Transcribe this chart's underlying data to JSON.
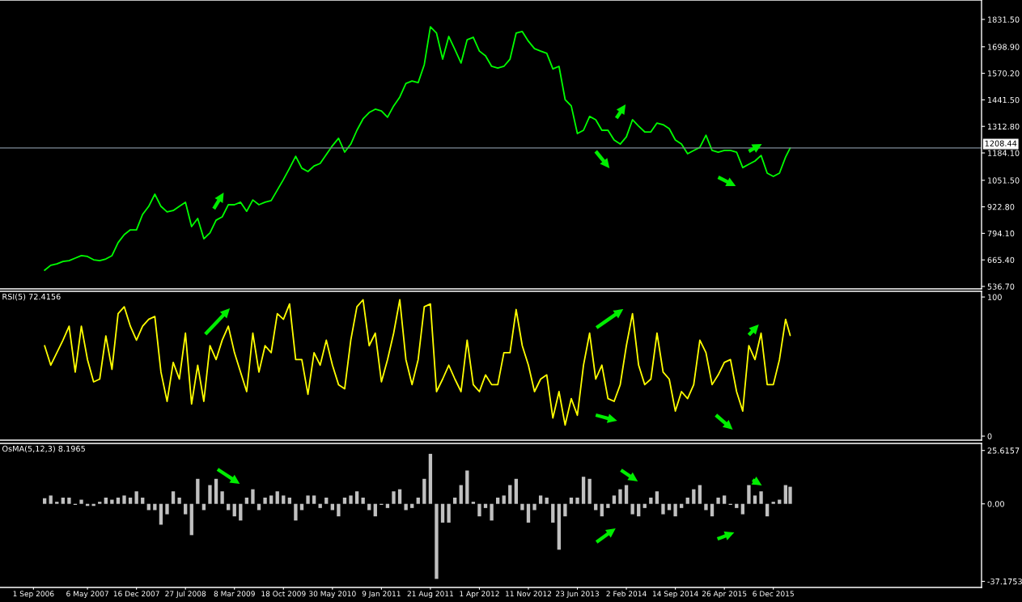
{
  "chart_data": [
    {
      "type": "line",
      "tick_labels": "y",
      "x": [
        "2006-10-22",
        "2006-11-19",
        "2006-12-17",
        "2007-01-14",
        "2007-02-11",
        "2007-03-11",
        "2007-04-08",
        "2007-05-06",
        "2007-06-03",
        "2007-07-01",
        "2007-07-29",
        "2007-08-26",
        "2007-09-23",
        "2007-10-21",
        "2007-11-18",
        "2007-12-16",
        "2008-01-13",
        "2008-02-10",
        "2008-03-09",
        "2008-04-06",
        "2008-05-04",
        "2008-06-01",
        "2008-06-29",
        "2008-07-27",
        "2008-08-24",
        "2008-09-21",
        "2008-10-19",
        "2008-11-16",
        "2008-12-14",
        "2009-01-11",
        "2009-02-08",
        "2009-03-08",
        "2009-04-05",
        "2009-05-03",
        "2009-05-31",
        "2009-06-28",
        "2009-07-26",
        "2009-08-23",
        "2009-09-20",
        "2009-10-18",
        "2009-11-15",
        "2009-12-13",
        "2010-01-10",
        "2010-02-07",
        "2010-03-07",
        "2010-04-04",
        "2010-05-02",
        "2010-05-30",
        "2010-06-27",
        "2010-07-25",
        "2010-08-22",
        "2010-09-19",
        "2010-10-17",
        "2010-11-14",
        "2010-12-12",
        "2011-01-09",
        "2011-02-06",
        "2011-03-06",
        "2011-04-03",
        "2011-05-01",
        "2011-05-29",
        "2011-06-26",
        "2011-07-24",
        "2011-08-21",
        "2011-09-18",
        "2011-10-16",
        "2011-11-13",
        "2011-12-11",
        "2012-01-08",
        "2012-02-05",
        "2012-03-04",
        "2012-04-01",
        "2012-04-29",
        "2012-05-27",
        "2012-06-24",
        "2012-07-22",
        "2012-08-19",
        "2012-09-16",
        "2012-10-14",
        "2012-11-11",
        "2012-12-09",
        "2013-01-06",
        "2013-02-03",
        "2013-03-03",
        "2013-03-31",
        "2013-04-28",
        "2013-05-26",
        "2013-06-23",
        "2013-07-21",
        "2013-08-18",
        "2013-09-15",
        "2013-10-13",
        "2013-11-10",
        "2013-12-08",
        "2014-01-05",
        "2014-02-02",
        "2014-03-02",
        "2014-03-30",
        "2014-04-27",
        "2014-05-25",
        "2014-06-22",
        "2014-07-20",
        "2014-08-17",
        "2014-09-14",
        "2014-10-12",
        "2014-11-09",
        "2014-12-07",
        "2015-01-04",
        "2015-02-01",
        "2015-03-01",
        "2015-03-29",
        "2015-04-26",
        "2015-05-24",
        "2015-06-21",
        "2015-07-19",
        "2015-08-16",
        "2015-09-13",
        "2015-10-11",
        "2015-11-08",
        "2015-12-06",
        "2016-01-03",
        "2016-01-31",
        "2016-02-21"
      ],
      "series": [
        {
          "color": "#00ff00",
          "values": [
            615,
            639,
            646,
            658,
            662,
            674,
            686,
            682,
            666,
            662,
            670,
            686,
            749,
            788,
            811,
            811,
            886,
            925,
            984,
            925,
            898,
            905,
            925,
            945,
            827,
            866,
            768,
            796,
            858,
            874,
            933,
            933,
            945,
            901,
            956,
            933,
            945,
            953,
            1004,
            1055,
            1110,
            1168,
            1110,
            1094,
            1121,
            1133,
            1176,
            1219,
            1255,
            1188,
            1227,
            1294,
            1349,
            1380,
            1396,
            1388,
            1357,
            1412,
            1455,
            1521,
            1533,
            1525,
            1612,
            1796,
            1765,
            1639,
            1749,
            1686,
            1620,
            1733,
            1745,
            1678,
            1655,
            1604,
            1596,
            1604,
            1639,
            1765,
            1773,
            1726,
            1690,
            1678,
            1667,
            1592,
            1604,
            1443,
            1412,
            1278,
            1294,
            1361,
            1345,
            1294,
            1294,
            1247,
            1227,
            1262,
            1345,
            1314,
            1286,
            1286,
            1329,
            1321,
            1302,
            1247,
            1227,
            1180,
            1196,
            1211,
            1270,
            1196,
            1188,
            1196,
            1196,
            1188,
            1113,
            1129,
            1145,
            1172,
            1086,
            1070,
            1086,
            1164,
            1208
          ]
        }
      ],
      "xlim": [
        "2006-04-01",
        "2018-07-15"
      ],
      "ylim": [
        524.9,
        1925.7
      ],
      "yticks": [
        {
          "value": 1831.5,
          "label": "1831.50"
        },
        {
          "value": 1698.9,
          "label": "1698.90"
        },
        {
          "value": 1570.2,
          "label": "1570.20"
        },
        {
          "value": 1441.5,
          "label": "1441.50"
        },
        {
          "value": 1312.8,
          "label": "1312.80"
        },
        {
          "value": 1184.1,
          "label": "1184.10"
        },
        {
          "value": 1051.5,
          "label": "1051.50"
        },
        {
          "value": 922.8,
          "label": "922.80"
        },
        {
          "value": 794.1,
          "label": "794.10"
        },
        {
          "value": 665.4,
          "label": "665.40"
        },
        {
          "value": 536.7,
          "label": "536.70"
        }
      ],
      "ref_lines": [
        {
          "axis": "y",
          "value": 1208.44,
          "label": "1208.44",
          "color": "#7f8c99"
        }
      ]
    },
    {
      "type": "line",
      "title": "RSI(5) 72.4156",
      "tick_labels": "y",
      "x": [
        "2006-10-22",
        "2006-11-19",
        "2006-12-17",
        "2007-01-14",
        "2007-02-11",
        "2007-03-11",
        "2007-04-08",
        "2007-05-06",
        "2007-06-03",
        "2007-07-01",
        "2007-07-29",
        "2007-08-26",
        "2007-09-23",
        "2007-10-21",
        "2007-11-18",
        "2007-12-16",
        "2008-01-13",
        "2008-02-10",
        "2008-03-09",
        "2008-04-06",
        "2008-05-04",
        "2008-06-01",
        "2008-06-29",
        "2008-07-27",
        "2008-08-24",
        "2008-09-21",
        "2008-10-19",
        "2008-11-16",
        "2008-12-14",
        "2009-01-11",
        "2009-02-08",
        "2009-03-08",
        "2009-04-05",
        "2009-05-03",
        "2009-05-31",
        "2009-06-28",
        "2009-07-26",
        "2009-08-23",
        "2009-09-20",
        "2009-10-18",
        "2009-11-15",
        "2009-12-13",
        "2010-01-10",
        "2010-02-07",
        "2010-03-07",
        "2010-04-04",
        "2010-05-02",
        "2010-05-30",
        "2010-06-27",
        "2010-07-25",
        "2010-08-22",
        "2010-09-19",
        "2010-10-17",
        "2010-11-14",
        "2010-12-12",
        "2011-01-09",
        "2011-02-06",
        "2011-03-06",
        "2011-04-03",
        "2011-05-01",
        "2011-05-29",
        "2011-06-26",
        "2011-07-24",
        "2011-08-21",
        "2011-09-18",
        "2011-10-16",
        "2011-11-13",
        "2011-12-11",
        "2012-01-08",
        "2012-02-05",
        "2012-03-04",
        "2012-04-01",
        "2012-04-29",
        "2012-05-27",
        "2012-06-24",
        "2012-07-22",
        "2012-08-19",
        "2012-09-16",
        "2012-10-14",
        "2012-11-11",
        "2012-12-09",
        "2013-01-06",
        "2013-02-03",
        "2013-03-03",
        "2013-03-31",
        "2013-04-28",
        "2013-05-26",
        "2013-06-23",
        "2013-07-21",
        "2013-08-18",
        "2013-09-15",
        "2013-10-13",
        "2013-11-10",
        "2013-12-08",
        "2014-01-05",
        "2014-02-02",
        "2014-03-02",
        "2014-03-30",
        "2014-04-27",
        "2014-05-25",
        "2014-06-22",
        "2014-07-20",
        "2014-08-17",
        "2014-09-14",
        "2014-10-12",
        "2014-11-09",
        "2014-12-07",
        "2015-01-04",
        "2015-02-01",
        "2015-03-01",
        "2015-03-29",
        "2015-04-26",
        "2015-05-24",
        "2015-06-21",
        "2015-07-19",
        "2015-08-16",
        "2015-09-13",
        "2015-10-11",
        "2015-11-08",
        "2015-12-06",
        "2016-01-03",
        "2016-01-31",
        "2016-02-21"
      ],
      "series": [
        {
          "color": "#ffff00",
          "values": [
            65,
            51,
            60,
            69,
            79,
            46,
            79,
            55,
            39,
            41,
            72,
            48,
            88,
            93,
            79,
            69,
            79,
            84,
            86,
            46,
            25,
            53,
            41,
            74,
            23,
            51,
            25,
            65,
            55,
            69,
            79,
            60,
            46,
            32,
            74,
            46,
            65,
            60,
            88,
            84,
            95,
            55,
            55,
            30,
            60,
            51,
            69,
            51,
            37,
            34,
            69,
            93,
            98,
            65,
            74,
            39,
            55,
            74,
            98,
            55,
            37,
            55,
            93,
            95,
            32,
            41,
            51,
            41,
            32,
            69,
            37,
            32,
            44,
            37,
            37,
            60,
            60,
            91,
            65,
            51,
            32,
            41,
            44,
            13,
            32,
            8,
            27,
            15,
            51,
            74,
            41,
            51,
            27,
            25,
            37,
            65,
            88,
            51,
            37,
            41,
            74,
            46,
            41,
            18,
            32,
            27,
            37,
            69,
            60,
            37,
            44,
            53,
            55,
            32,
            18,
            65,
            55,
            74,
            37,
            37,
            55,
            84,
            72.4
          ]
        }
      ],
      "xlim": [
        "2006-04-01",
        "2018-07-15"
      ],
      "ylim": [
        -2.9,
        104.1
      ],
      "yticks": [
        100,
        0
      ]
    },
    {
      "type": "bar",
      "title": "OsMA(5,12,3) 8.1965",
      "color": "#c0c0c0",
      "x": [
        "2006-10-22",
        "2006-11-19",
        "2006-12-17",
        "2007-01-14",
        "2007-02-11",
        "2007-03-11",
        "2007-04-08",
        "2007-05-06",
        "2007-06-03",
        "2007-07-01",
        "2007-07-29",
        "2007-08-26",
        "2007-09-23",
        "2007-10-21",
        "2007-11-18",
        "2007-12-16",
        "2008-01-13",
        "2008-02-10",
        "2008-03-09",
        "2008-04-06",
        "2008-05-04",
        "2008-06-01",
        "2008-06-29",
        "2008-07-27",
        "2008-08-24",
        "2008-09-21",
        "2008-10-19",
        "2008-11-16",
        "2008-12-14",
        "2009-01-11",
        "2009-02-08",
        "2009-03-08",
        "2009-04-05",
        "2009-05-03",
        "2009-05-31",
        "2009-06-28",
        "2009-07-26",
        "2009-08-23",
        "2009-09-20",
        "2009-10-18",
        "2009-11-15",
        "2009-12-13",
        "2010-01-10",
        "2010-02-07",
        "2010-03-07",
        "2010-04-04",
        "2010-05-02",
        "2010-05-30",
        "2010-06-27",
        "2010-07-25",
        "2010-08-22",
        "2010-09-19",
        "2010-10-17",
        "2010-11-14",
        "2010-12-12",
        "2011-01-09",
        "2011-02-06",
        "2011-03-06",
        "2011-04-03",
        "2011-05-01",
        "2011-05-29",
        "2011-06-26",
        "2011-07-24",
        "2011-08-21",
        "2011-09-18",
        "2011-10-16",
        "2011-11-13",
        "2011-12-11",
        "2012-01-08",
        "2012-02-05",
        "2012-03-04",
        "2012-04-01",
        "2012-04-29",
        "2012-05-27",
        "2012-06-24",
        "2012-07-22",
        "2012-08-19",
        "2012-09-16",
        "2012-10-14",
        "2012-11-11",
        "2012-12-09",
        "2013-01-06",
        "2013-02-03",
        "2013-03-03",
        "2013-03-31",
        "2013-04-28",
        "2013-05-26",
        "2013-06-23",
        "2013-07-21",
        "2013-08-18",
        "2013-09-15",
        "2013-10-13",
        "2013-11-10",
        "2013-12-08",
        "2014-01-05",
        "2014-02-02",
        "2014-03-02",
        "2014-03-30",
        "2014-04-27",
        "2014-05-25",
        "2014-06-22",
        "2014-07-20",
        "2014-08-17",
        "2014-09-14",
        "2014-10-12",
        "2014-11-09",
        "2014-12-07",
        "2015-01-04",
        "2015-02-01",
        "2015-03-01",
        "2015-03-29",
        "2015-04-26",
        "2015-05-24",
        "2015-06-21",
        "2015-07-19",
        "2015-08-16",
        "2015-09-13",
        "2015-10-11",
        "2015-11-08",
        "2015-12-06",
        "2016-01-03",
        "2016-01-31",
        "2016-02-21"
      ],
      "values": [
        2.7,
        4,
        1,
        3,
        3,
        -0.5,
        2,
        -1,
        -1,
        1,
        3,
        2,
        3,
        4,
        3,
        6,
        3,
        -3,
        -3,
        -10,
        -5,
        6,
        3,
        -5,
        -15,
        12,
        -3,
        9,
        12,
        6,
        -3,
        -6,
        -8,
        3,
        7,
        -3,
        3,
        4,
        6,
        4,
        3,
        -8,
        -3,
        4,
        4,
        -2,
        3,
        -3,
        -6,
        3,
        4,
        6,
        3,
        -3,
        -6,
        -0.5,
        -2,
        6,
        7,
        -3,
        -2,
        3,
        12,
        24,
        -36,
        -9,
        -9,
        3,
        9,
        16,
        1,
        -6,
        -2,
        -8,
        3,
        4,
        9,
        12,
        -3,
        -9,
        -3,
        4,
        3,
        -9,
        -22,
        -6,
        3,
        3,
        13,
        12,
        -3,
        -6,
        -2,
        4,
        7,
        9,
        -5,
        -6,
        -2,
        3,
        6,
        -5,
        -3,
        -6,
        -2,
        3,
        7,
        9,
        -3,
        -6,
        3,
        4,
        -0.5,
        -2,
        -5,
        9,
        4,
        6,
        -6,
        1,
        2,
        9,
        8.2
      ],
      "xlim": [
        "2006-04-01",
        "2018-07-15"
      ],
      "xticks": [
        {
          "value": "2006-09-01",
          "label": "1 Sep 2006"
        },
        {
          "value": "2007-05-06",
          "label": "6 May 2007"
        },
        {
          "value": "2007-12-16",
          "label": "16 Dec 2007"
        },
        {
          "value": "2008-07-27",
          "label": "27 Jul 2008"
        },
        {
          "value": "2009-03-08",
          "label": "8 Mar 2009"
        },
        {
          "value": "2009-10-18",
          "label": "18 Oct 2009"
        },
        {
          "value": "2010-05-30",
          "label": "30 May 2010"
        },
        {
          "value": "2011-01-09",
          "label": "9 Jan 2011"
        },
        {
          "value": "2011-08-21",
          "label": "21 Aug 2011"
        },
        {
          "value": "2012-04-01",
          "label": "1 Apr 2012"
        },
        {
          "value": "2012-11-11",
          "label": "11 Nov 2012"
        },
        {
          "value": "2013-06-23",
          "label": "23 Jun 2013"
        },
        {
          "value": "2014-02-02",
          "label": "2 Feb 2014"
        },
        {
          "value": "2014-09-14",
          "label": "14 Sep 2014"
        },
        {
          "value": "2015-04-26",
          "label": "26 Apr 2015"
        },
        {
          "value": "2015-12-06",
          "label": "6 Dec 2015"
        }
      ],
      "ylim": [
        -40.1,
        29.0
      ],
      "yticks": [
        {
          "value": 25.6157,
          "label": "25.6157"
        },
        {
          "value": 0,
          "label": "0.00"
        },
        {
          "value": -37.1753,
          "label": "-37.1753"
        }
      ]
    }
  ]
}
